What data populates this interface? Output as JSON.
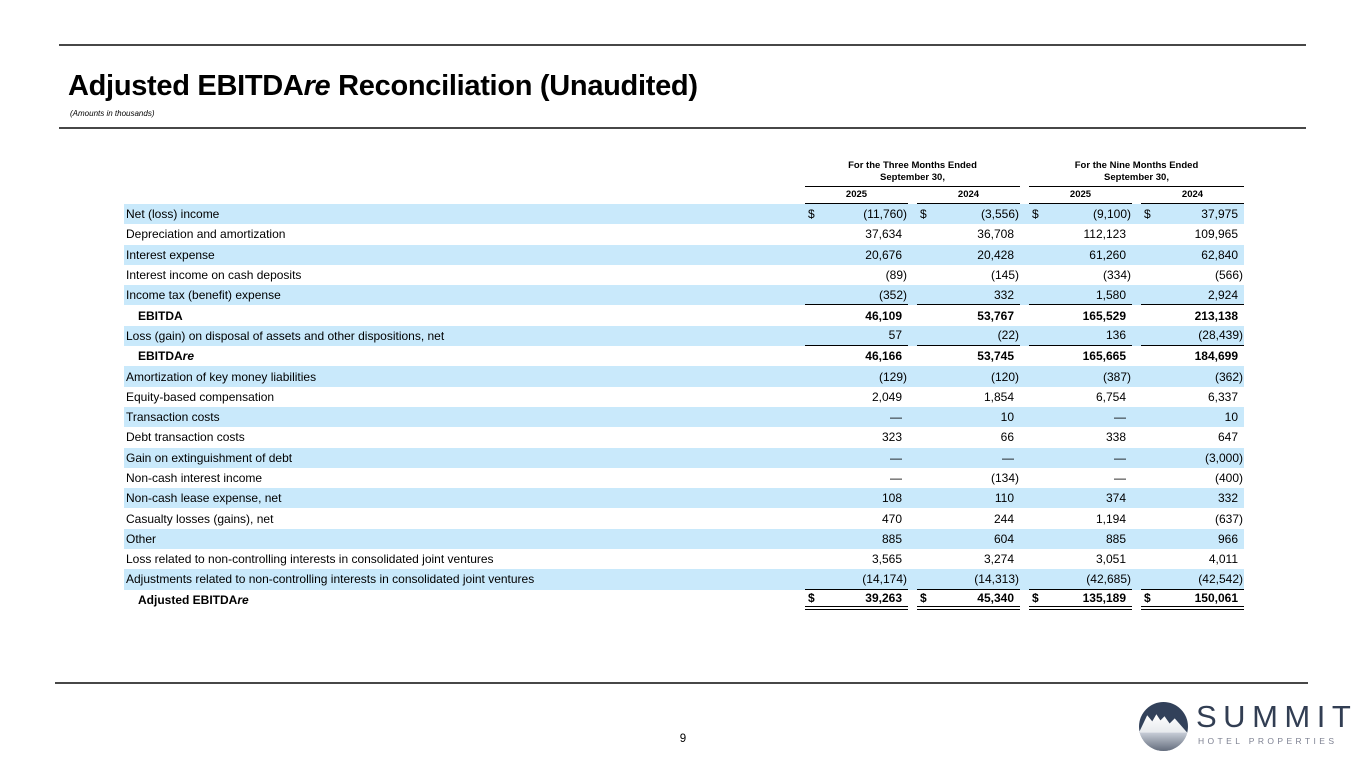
{
  "page": {
    "title_prefix": "Adjusted EBITDA",
    "title_italic": "re",
    "title_suffix": " Reconciliation (Unaudited)",
    "subtitle": "(Amounts in thousands)",
    "page_number": "9"
  },
  "table": {
    "group_headers": [
      {
        "line1": "For the Three Months Ended",
        "line2": "September 30,"
      },
      {
        "line1": "For the Nine Months Ended",
        "line2": "September 30,"
      }
    ],
    "year_headers": [
      "2025",
      "2024",
      "2025",
      "2024"
    ],
    "rows": [
      {
        "label": "Net (loss) income",
        "label_italic": "",
        "indent": false,
        "bold": false,
        "shaded": true,
        "dollar": true,
        "rule": "none",
        "values": [
          "(11,760)",
          "(3,556)",
          "(9,100)",
          "37,975"
        ]
      },
      {
        "label": "Depreciation and amortization",
        "label_italic": "",
        "indent": false,
        "bold": false,
        "shaded": false,
        "dollar": false,
        "rule": "none",
        "values": [
          "37,634",
          "36,708",
          "112,123",
          "109,965"
        ]
      },
      {
        "label": "Interest expense",
        "label_italic": "",
        "indent": false,
        "bold": false,
        "shaded": true,
        "dollar": false,
        "rule": "none",
        "values": [
          "20,676",
          "20,428",
          "61,260",
          "62,840"
        ]
      },
      {
        "label": "Interest income on cash deposits",
        "label_italic": "",
        "indent": false,
        "bold": false,
        "shaded": false,
        "dollar": false,
        "rule": "none",
        "values": [
          "(89)",
          "(145)",
          "(334)",
          "(566)"
        ]
      },
      {
        "label": "Income tax (benefit) expense",
        "label_italic": "",
        "indent": false,
        "bold": false,
        "shaded": true,
        "dollar": false,
        "rule": "single",
        "values": [
          "(352)",
          "332",
          "1,580",
          "2,924"
        ]
      },
      {
        "label": "EBITDA",
        "label_italic": "",
        "indent": true,
        "bold": true,
        "shaded": false,
        "dollar": false,
        "rule": "none",
        "values": [
          "46,109",
          "53,767",
          "165,529",
          "213,138"
        ]
      },
      {
        "label": "Loss (gain) on disposal of assets and other dispositions, net",
        "label_italic": "",
        "indent": false,
        "bold": false,
        "shaded": true,
        "dollar": false,
        "rule": "single",
        "values": [
          "57",
          "(22)",
          "136",
          "(28,439)"
        ]
      },
      {
        "label": "EBITDA",
        "label_italic": "re",
        "indent": true,
        "bold": true,
        "shaded": false,
        "dollar": false,
        "rule": "none",
        "values": [
          "46,166",
          "53,745",
          "165,665",
          "184,699"
        ]
      },
      {
        "label": "Amortization of key money liabilities",
        "label_italic": "",
        "indent": false,
        "bold": false,
        "shaded": true,
        "dollar": false,
        "rule": "none",
        "values": [
          "(129)",
          "(120)",
          "(387)",
          "(362)"
        ]
      },
      {
        "label": "Equity-based compensation",
        "label_italic": "",
        "indent": false,
        "bold": false,
        "shaded": false,
        "dollar": false,
        "rule": "none",
        "values": [
          "2,049",
          "1,854",
          "6,754",
          "6,337"
        ]
      },
      {
        "label": "Transaction costs",
        "label_italic": "",
        "indent": false,
        "bold": false,
        "shaded": true,
        "dollar": false,
        "rule": "none",
        "values": [
          "—",
          "10",
          "—",
          "10"
        ]
      },
      {
        "label": "Debt transaction costs",
        "label_italic": "",
        "indent": false,
        "bold": false,
        "shaded": false,
        "dollar": false,
        "rule": "none",
        "values": [
          "323",
          "66",
          "338",
          "647"
        ]
      },
      {
        "label": "Gain on extinguishment of debt",
        "label_italic": "",
        "indent": false,
        "bold": false,
        "shaded": true,
        "dollar": false,
        "rule": "none",
        "values": [
          "—",
          "—",
          "—",
          "(3,000)"
        ]
      },
      {
        "label": "Non-cash interest income",
        "label_italic": "",
        "indent": false,
        "bold": false,
        "shaded": false,
        "dollar": false,
        "rule": "none",
        "values": [
          "—",
          "(134)",
          "—",
          "(400)"
        ]
      },
      {
        "label": "Non-cash lease expense, net",
        "label_italic": "",
        "indent": false,
        "bold": false,
        "shaded": true,
        "dollar": false,
        "rule": "none",
        "values": [
          "108",
          "110",
          "374",
          "332"
        ]
      },
      {
        "label": "Casualty losses (gains), net",
        "label_italic": "",
        "indent": false,
        "bold": false,
        "shaded": false,
        "dollar": false,
        "rule": "none",
        "values": [
          "470",
          "244",
          "1,194",
          "(637)"
        ]
      },
      {
        "label": "Other",
        "label_italic": "",
        "indent": false,
        "bold": false,
        "shaded": true,
        "dollar": false,
        "rule": "none",
        "values": [
          "885",
          "604",
          "885",
          "966"
        ]
      },
      {
        "label": "Loss related to non-controlling interests in consolidated joint ventures",
        "label_italic": "",
        "indent": false,
        "bold": false,
        "shaded": false,
        "dollar": false,
        "rule": "none",
        "values": [
          "3,565",
          "3,274",
          "3,051",
          "4,011"
        ]
      },
      {
        "label": "Adjustments related to non-controlling interests in consolidated joint ventures",
        "label_italic": "",
        "indent": false,
        "bold": false,
        "shaded": true,
        "dollar": false,
        "rule": "single",
        "values": [
          "(14,174)",
          "(14,313)",
          "(42,685)",
          "(42,542)"
        ]
      },
      {
        "label": "Adjusted EBITDA",
        "label_italic": "re",
        "indent": true,
        "bold": true,
        "shaded": false,
        "dollar": true,
        "rule": "double",
        "values": [
          "39,263",
          "45,340",
          "135,189",
          "150,061"
        ]
      }
    ],
    "dollar_sign": "$"
  },
  "logo": {
    "name": "SUMMIT",
    "tagline": "HOTEL PROPERTIES"
  },
  "colors": {
    "row_highlight": "#c9e9fb",
    "logo_navy": "#323e53",
    "logo_gray": "#7e8292"
  }
}
